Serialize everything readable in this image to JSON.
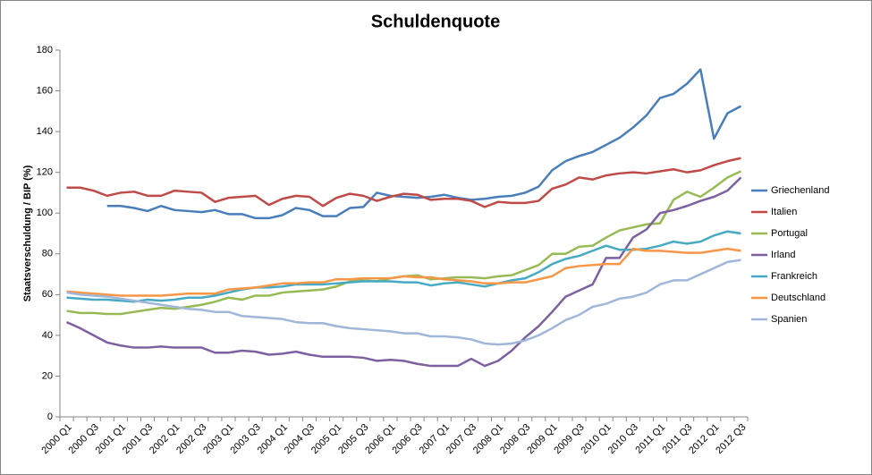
{
  "chart_data": {
    "type": "line",
    "title": "Schuldenquote",
    "y_label": "Staatsverschuldung / BIP (%)",
    "categories": [
      "2000 Q1",
      null,
      "2000 Q3",
      null,
      "2001 Q1",
      null,
      "2001 Q3",
      null,
      "2002 Q1",
      null,
      "2002 Q3",
      null,
      "2003 Q1",
      null,
      "2003 Q3",
      null,
      "2004 Q1",
      null,
      "2004 Q3",
      null,
      "2005 Q1",
      null,
      "2005 Q3",
      null,
      "2006 Q1",
      null,
      "2006 Q3",
      null,
      "2007 Q1",
      null,
      "2007 Q3",
      null,
      "2008 Q1",
      null,
      "2008 Q3",
      null,
      "2009 Q1",
      null,
      "2009 Q3",
      null,
      "2010 Q1",
      null,
      "2010 Q3",
      null,
      "2011 Q1",
      null,
      "2011 Q3",
      null,
      "2012 Q1",
      null,
      "2012 Q3"
    ],
    "series": [
      {
        "name": "Griechenland",
        "color": "#4a7ebb",
        "values": [
          null,
          null,
          null,
          103.5,
          103.5,
          102.5,
          101,
          103.5,
          101.5,
          101,
          100.5,
          101.5,
          99.5,
          99.5,
          97.5,
          97.5,
          99,
          102.5,
          101.5,
          98.5,
          98.5,
          102.5,
          103,
          110,
          108.5,
          108,
          107.5,
          108,
          109,
          107.5,
          106.5,
          107,
          108,
          108.5,
          110,
          113,
          121,
          125.5,
          128,
          130,
          133.5,
          137,
          142,
          148,
          156.5,
          158.5,
          163.5,
          170.5,
          136.5,
          149,
          152.5
        ]
      },
      {
        "name": "Italien",
        "color": "#be4b48",
        "values": [
          112.5,
          112.5,
          111,
          108.5,
          110,
          110.5,
          108.5,
          108.5,
          111,
          110.5,
          110,
          105.5,
          107.5,
          108,
          108.5,
          104,
          107,
          108.5,
          108,
          103.5,
          107.5,
          109.5,
          108.5,
          106,
          108,
          109.5,
          109,
          106.5,
          107,
          107,
          106,
          103,
          105.5,
          105,
          105,
          106,
          112,
          114,
          117.5,
          116.5,
          118.5,
          119.5,
          120,
          119.5,
          120.5,
          121.5,
          120,
          121,
          123.5,
          125.5,
          127
        ]
      },
      {
        "name": "Portugal",
        "color": "#98b954",
        "values": [
          52,
          51,
          51,
          50.5,
          50.5,
          51.5,
          52.5,
          53.5,
          53,
          54,
          55,
          56.5,
          58.5,
          57.5,
          59.5,
          59.5,
          61,
          61.5,
          62,
          62.5,
          64,
          66.5,
          67,
          66.5,
          68,
          69,
          69.5,
          67.5,
          68,
          68.5,
          68.5,
          68,
          69,
          69.5,
          72,
          74.5,
          80,
          80,
          83.5,
          84,
          88,
          91.5,
          93,
          94.5,
          95,
          106.5,
          110.5,
          108,
          112.5,
          117.5,
          120.5
        ]
      },
      {
        "name": "Irland",
        "color": "#7d60a0",
        "values": [
          46.5,
          43.5,
          40,
          36.5,
          35,
          34,
          34,
          34.5,
          34,
          34,
          34,
          31.5,
          31.5,
          32.5,
          32,
          30.5,
          31,
          32,
          30.5,
          29.5,
          29.5,
          29.5,
          29,
          27.5,
          28,
          27.5,
          26,
          25,
          25,
          25,
          28.5,
          25,
          27.5,
          32.5,
          39,
          44.5,
          51.5,
          59,
          62,
          65,
          78,
          78,
          88,
          92,
          100,
          101.5,
          103.5,
          106,
          108,
          111,
          117.5
        ]
      },
      {
        "name": "Frankreich",
        "color": "#46aac5",
        "values": [
          58.5,
          58,
          57.5,
          57.5,
          57,
          56.5,
          57.5,
          57,
          57.5,
          58.5,
          58.5,
          59.5,
          61,
          62.5,
          63.5,
          63.5,
          64,
          65,
          65,
          65,
          65.5,
          66,
          66.5,
          66.5,
          66.5,
          66,
          66,
          64.5,
          65.5,
          66,
          65,
          64,
          65.5,
          67,
          68,
          71,
          75,
          77.5,
          79,
          81.5,
          84,
          82,
          82,
          82.5,
          84,
          86,
          85,
          86,
          89,
          91,
          90
        ]
      },
      {
        "name": "Deutschland",
        "color": "#f79646",
        "values": [
          61.5,
          61,
          60.5,
          60,
          59.5,
          59.5,
          59.5,
          59.5,
          60,
          60.5,
          60.5,
          60.5,
          62.5,
          63,
          63.5,
          64.5,
          65.5,
          65.5,
          66,
          66,
          67.5,
          67.5,
          68,
          68,
          68,
          69,
          68.5,
          68.5,
          67.5,
          67,
          66.5,
          65.5,
          65.5,
          66,
          66,
          67.5,
          69,
          73,
          74,
          74.5,
          75,
          75,
          82.5,
          81.5,
          81.5,
          81,
          80.5,
          80.5,
          81.5,
          82.5,
          81.5
        ]
      },
      {
        "name": "Spanien",
        "color": "#a0b7d9",
        "values": [
          61,
          60,
          59.5,
          59,
          58,
          57,
          56,
          55,
          54,
          53,
          52.5,
          51.5,
          51.5,
          49.5,
          49,
          48.5,
          48,
          46.5,
          46,
          46,
          44.5,
          43.5,
          43,
          42.5,
          42,
          41,
          41,
          39.5,
          39.5,
          39,
          38,
          36,
          35.5,
          36,
          37.5,
          40,
          43.5,
          47.5,
          50,
          54,
          55.5,
          58,
          59,
          61,
          65,
          67,
          67,
          70,
          73,
          76,
          77
        ]
      }
    ],
    "ylim": [
      0,
      180
    ],
    "yticks": [
      0,
      20,
      40,
      60,
      80,
      100,
      120,
      140,
      160,
      180
    ],
    "grid": false,
    "legend": "right"
  }
}
